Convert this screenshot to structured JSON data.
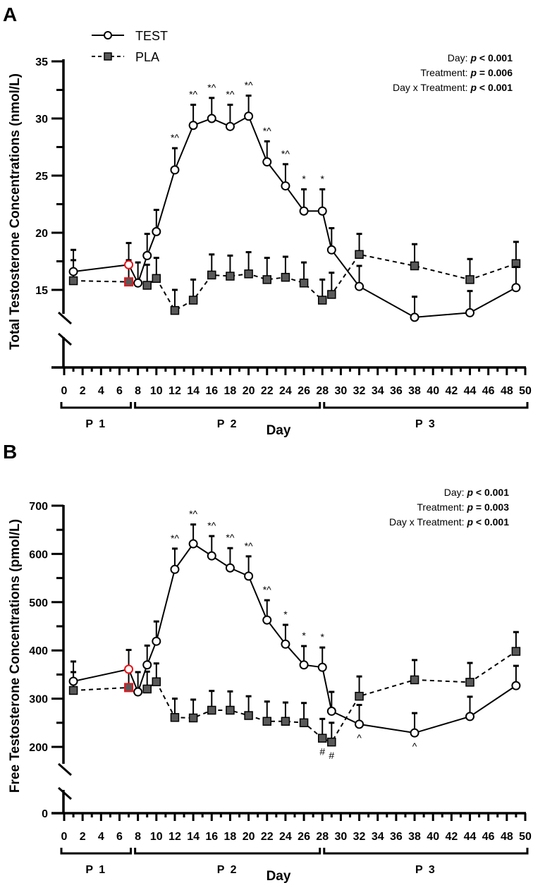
{
  "legend": {
    "test_label": "TEST",
    "pla_label": "PLA"
  },
  "colors": {
    "baseline_highlight": "#e8141b",
    "pla_fill": "#595959",
    "line": "#000000"
  },
  "chart_data": [
    {
      "panel": "A",
      "type": "line",
      "ylabel": "Total Testosterone Concentrations (nmol/L)",
      "xlabel": "Day",
      "ylim": [
        15,
        35
      ],
      "yticks": [
        "15",
        "20",
        "25",
        "30",
        "35"
      ],
      "bottom_label": "",
      "xlim": [
        0,
        50
      ],
      "xticks": [
        "0",
        "2",
        "4",
        "6",
        "8",
        "10",
        "12",
        "14",
        "16",
        "18",
        "20",
        "22",
        "24",
        "26",
        "28",
        "30",
        "32",
        "34",
        "36",
        "38",
        "40",
        "42",
        "44",
        "46",
        "48",
        "50"
      ],
      "periods": [
        {
          "label": "P1",
          "from": 0,
          "to": 7
        },
        {
          "label": "P2",
          "from": 8,
          "to": 27.5
        },
        {
          "label": "P3",
          "from": 28.5,
          "to": 50
        }
      ],
      "stats": [
        {
          "label": "Day:",
          "p": "p",
          "value": "< 0.001"
        },
        {
          "label": "Treatment:",
          "p": "p",
          "value": "= 0.006"
        },
        {
          "label": "Day x Treatment:",
          "p": "p",
          "value": "< 0.001"
        }
      ],
      "series": [
        {
          "name": "TEST",
          "days": [
            1,
            7,
            8,
            9,
            10,
            12,
            14,
            16,
            18,
            20,
            22,
            24,
            26,
            28,
            29,
            32,
            38,
            44,
            49
          ],
          "values": [
            16.6,
            17.2,
            15.6,
            18.0,
            20.1,
            25.5,
            29.4,
            30.0,
            29.3,
            30.2,
            26.2,
            24.1,
            21.9,
            21.9,
            18.5,
            15.3,
            12.6,
            13.0,
            15.2
          ],
          "error_upper": [
            18.5,
            19.1,
            17.4,
            19.9,
            22.0,
            27.4,
            31.2,
            31.8,
            31.2,
            32.0,
            28.0,
            26.0,
            23.8,
            23.8,
            20.4,
            17.1,
            14.4,
            14.9,
            17.0
          ],
          "highlight_days": [
            7
          ]
        },
        {
          "name": "PLA",
          "days": [
            1,
            7,
            9,
            10,
            12,
            14,
            16,
            18,
            20,
            22,
            24,
            26,
            28,
            29,
            32,
            38,
            44,
            49
          ],
          "values": [
            15.8,
            15.7,
            15.4,
            16.0,
            13.2,
            14.1,
            16.3,
            16.2,
            16.4,
            15.9,
            16.1,
            15.6,
            14.1,
            14.6,
            18.1,
            17.1,
            15.9,
            17.3
          ],
          "error_upper": [
            17.6,
            17.6,
            17.2,
            17.8,
            15.0,
            15.9,
            18.1,
            18.0,
            18.3,
            17.8,
            17.9,
            17.4,
            15.9,
            16.5,
            19.9,
            19.0,
            17.7,
            19.2
          ],
          "highlight_days": [
            7
          ]
        }
      ],
      "annotations": [
        {
          "series": "TEST",
          "day": 12,
          "text": "*^"
        },
        {
          "series": "TEST",
          "day": 14,
          "text": "*^"
        },
        {
          "series": "TEST",
          "day": 16,
          "text": "*^"
        },
        {
          "series": "TEST",
          "day": 18,
          "text": "*^"
        },
        {
          "series": "TEST",
          "day": 20,
          "text": "*^"
        },
        {
          "series": "TEST",
          "day": 22,
          "text": "*^"
        },
        {
          "series": "TEST",
          "day": 24,
          "text": "*^"
        },
        {
          "series": "TEST",
          "day": 26,
          "text": "*"
        },
        {
          "series": "TEST",
          "day": 28,
          "text": "*"
        }
      ]
    },
    {
      "panel": "B",
      "type": "line",
      "ylabel": "Free Testosterone Concentrations (pmol/L)",
      "xlabel": "Day",
      "ylim": [
        200,
        700
      ],
      "yticks": [
        "200",
        "300",
        "400",
        "500",
        "600",
        "700"
      ],
      "bottom_label": "0",
      "xlim": [
        0,
        50
      ],
      "xticks": [
        "0",
        "2",
        "4",
        "6",
        "8",
        "10",
        "12",
        "14",
        "16",
        "18",
        "20",
        "22",
        "24",
        "26",
        "28",
        "30",
        "32",
        "34",
        "36",
        "38",
        "40",
        "42",
        "44",
        "46",
        "48",
        "50"
      ],
      "periods": [
        {
          "label": "P1",
          "from": 0,
          "to": 7
        },
        {
          "label": "P2",
          "from": 8,
          "to": 27.5
        },
        {
          "label": "P3",
          "from": 28.5,
          "to": 50
        }
      ],
      "stats": [
        {
          "label": "Day:",
          "p": "p",
          "value": "< 0.001"
        },
        {
          "label": "Treatment:",
          "p": "p",
          "value": "= 0.003"
        },
        {
          "label": "Day x Treatment:",
          "p": "p",
          "value": "< 0.001"
        }
      ],
      "series": [
        {
          "name": "TEST",
          "days": [
            1,
            7,
            8,
            9,
            10,
            12,
            14,
            16,
            18,
            20,
            22,
            24,
            26,
            28,
            29,
            32,
            38,
            44,
            49
          ],
          "values": [
            336,
            361,
            314,
            370,
            419,
            568,
            621,
            596,
            571,
            554,
            463,
            413,
            370,
            365,
            274,
            247,
            229,
            263,
            327
          ],
          "error_upper": [
            377,
            401,
            355,
            410,
            460,
            611,
            661,
            637,
            612,
            595,
            504,
            453,
            409,
            406,
            314,
            287,
            270,
            304,
            368
          ],
          "highlight_days": [
            7
          ]
        },
        {
          "name": "PLA",
          "days": [
            1,
            7,
            9,
            10,
            12,
            14,
            16,
            18,
            20,
            22,
            24,
            26,
            28,
            29,
            32,
            38,
            44,
            49
          ],
          "values": [
            317,
            323,
            320,
            335,
            261,
            260,
            276,
            276,
            265,
            253,
            253,
            250,
            218,
            210,
            305,
            339,
            334,
            398
          ],
          "error_upper": [
            355,
            355,
            356,
            373,
            300,
            298,
            316,
            315,
            305,
            294,
            292,
            291,
            258,
            250,
            346,
            380,
            374,
            438
          ],
          "highlight_days": [
            7
          ]
        }
      ],
      "annotations": [
        {
          "series": "TEST",
          "day": 12,
          "text": "*^"
        },
        {
          "series": "TEST",
          "day": 14,
          "text": "*^"
        },
        {
          "series": "TEST",
          "day": 16,
          "text": "*^"
        },
        {
          "series": "TEST",
          "day": 18,
          "text": "*^"
        },
        {
          "series": "TEST",
          "day": 20,
          "text": "*^"
        },
        {
          "series": "TEST",
          "day": 22,
          "text": "*^"
        },
        {
          "series": "TEST",
          "day": 24,
          "text": "*"
        },
        {
          "series": "TEST",
          "day": 26,
          "text": "*"
        },
        {
          "series": "TEST",
          "day": 28,
          "text": "*"
        },
        {
          "series": "PLA",
          "day": 28,
          "text": "#",
          "below": true
        },
        {
          "series": "PLA",
          "day": 29,
          "text": "#",
          "below": true
        },
        {
          "series": "TEST",
          "day": 32,
          "text": "^",
          "below": true
        },
        {
          "series": "TEST",
          "day": 38,
          "text": "^",
          "below": true
        }
      ]
    }
  ]
}
